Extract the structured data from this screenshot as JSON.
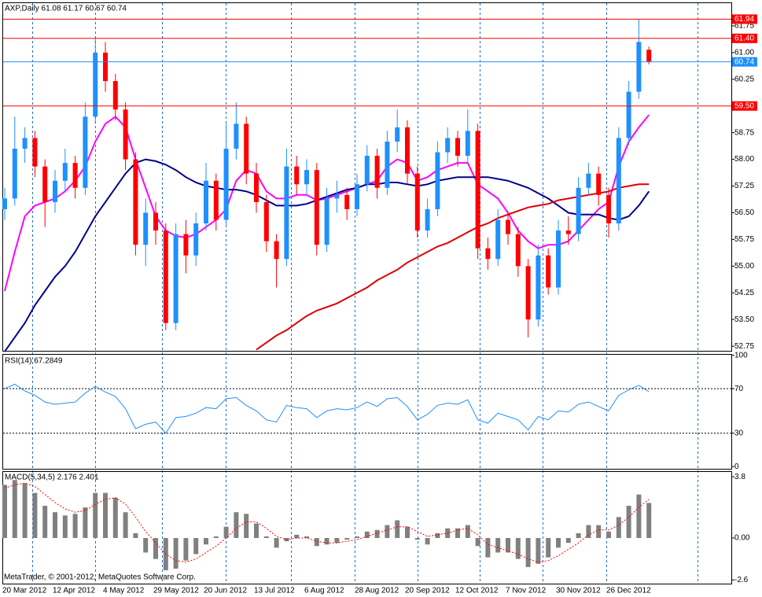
{
  "chart_data": [
    {
      "type": "candlestick",
      "title": "AXP,Daily  61.08 61.17 60.67 60.74",
      "categories": [
        "20 Mar 2012",
        null,
        null,
        null,
        null,
        "12 Apr 2012",
        null,
        null,
        null,
        null,
        "4 May 2012",
        null,
        null,
        null,
        null,
        "29 May 2012",
        null,
        null,
        null,
        null,
        "20 Jun 2012",
        null,
        null,
        null,
        null,
        "13 Jul 2012",
        null,
        null,
        null,
        null,
        "6 Aug 2012",
        null,
        null,
        null,
        null,
        "28 Aug 2012",
        null,
        null,
        null,
        null,
        "20 Sep 2012",
        null,
        null,
        null,
        null,
        "12 Oct 2012",
        null,
        null,
        null,
        null,
        "7 Nov 2012",
        null,
        null,
        null,
        null,
        "30 Nov 2012",
        null,
        null,
        null,
        null,
        "26 Dec 2012",
        null,
        null,
        null,
        null
      ],
      "open": [
        56.6,
        56.9,
        58.3,
        58.6,
        57.8,
        56.8,
        57.4,
        57.9,
        57.2,
        59.2,
        61.0,
        60.2,
        59.4,
        58.0,
        55.6,
        56.5,
        56.0,
        53.4,
        55.9,
        55.3,
        56.2,
        57.4,
        56.3,
        58.3,
        59.0,
        57.6,
        56.8,
        55.7,
        55.2,
        57.8,
        57.3,
        57.7,
        55.6,
        56.9,
        57.0,
        56.6,
        57.3,
        58.1,
        57.2,
        58.5,
        58.9,
        57.6,
        56.0,
        56.6,
        58.2,
        58.6,
        58.1,
        58.8,
        55.5,
        55.2,
        56.3,
        55.9,
        55.0,
        53.5,
        55.3,
        54.4,
        56.0,
        55.9,
        57.2,
        57.6,
        57.0,
        56.2,
        58.6,
        59.9,
        61.08
      ],
      "high": [
        57.2,
        59.2,
        58.9,
        58.8,
        58.0,
        57.7,
        58.3,
        58.1,
        59.6,
        61.4,
        61.3,
        60.4,
        59.6,
        58.2,
        56.9,
        56.8,
        56.2,
        56.2,
        56.3,
        56.5,
        57.9,
        57.6,
        59.0,
        59.6,
        59.2,
        57.9,
        57.0,
        55.9,
        58.3,
        58.1,
        58.0,
        57.9,
        57.2,
        57.4,
        57.2,
        57.6,
        58.4,
        58.3,
        58.8,
        59.4,
        59.1,
        57.8,
        56.9,
        58.5,
        58.9,
        58.8,
        59.4,
        59.0,
        55.8,
        56.6,
        56.5,
        56.1,
        55.2,
        55.6,
        55.5,
        56.3,
        56.4,
        57.5,
        57.9,
        57.8,
        57.2,
        58.9,
        60.2,
        61.94,
        61.17
      ],
      "low": [
        56.3,
        56.7,
        57.9,
        57.5,
        56.1,
        56.5,
        57.1,
        56.9,
        57.0,
        59.0,
        59.9,
        59.1,
        57.7,
        55.3,
        55.0,
        55.6,
        53.2,
        53.2,
        54.8,
        55.0,
        56.0,
        56.0,
        56.1,
        58.0,
        57.3,
        56.5,
        55.4,
        54.4,
        55.0,
        57.0,
        57.0,
        55.3,
        55.4,
        56.5,
        56.3,
        56.4,
        57.1,
        56.9,
        57.0,
        58.2,
        57.3,
        55.8,
        55.8,
        56.4,
        57.9,
        57.8,
        57.9,
        55.2,
        54.9,
        55.0,
        55.6,
        54.7,
        53.0,
        53.3,
        54.2,
        54.2,
        55.6,
        55.7,
        57.0,
        56.7,
        55.8,
        56.0,
        58.4,
        59.7,
        60.67
      ],
      "close": [
        56.9,
        58.3,
        58.6,
        57.8,
        56.8,
        57.4,
        57.9,
        57.2,
        59.2,
        61.0,
        60.2,
        59.4,
        58.0,
        55.6,
        56.5,
        56.0,
        53.4,
        55.9,
        55.3,
        56.2,
        57.4,
        56.3,
        58.3,
        59.0,
        57.6,
        56.8,
        55.7,
        55.2,
        57.8,
        57.3,
        57.7,
        55.6,
        56.9,
        57.0,
        56.6,
        57.3,
        58.1,
        57.2,
        58.5,
        58.9,
        57.6,
        56.0,
        56.6,
        58.2,
        58.6,
        58.1,
        58.8,
        55.5,
        55.2,
        56.3,
        55.9,
        55.0,
        53.5,
        55.3,
        54.4,
        56.0,
        55.9,
        57.2,
        57.6,
        57.0,
        56.2,
        58.6,
        59.9,
        61.3,
        60.74
      ],
      "up_color": "#1e90ff",
      "down_color": "#ff0000",
      "overlays": [
        {
          "color": "#ff00ff",
          "values": [
            54.3,
            55.4,
            56.4,
            56.7,
            56.8,
            56.9,
            57.1,
            57.4,
            57.8,
            58.5,
            59.0,
            59.2,
            58.9,
            58.0,
            57.2,
            56.4,
            56.0,
            55.85,
            55.8,
            55.9,
            56.1,
            56.3,
            56.6,
            57.4,
            57.7,
            57.6,
            57.1,
            56.9,
            56.9,
            57.0,
            57.0,
            56.85,
            56.9,
            57.0,
            57.1,
            57.2,
            57.3,
            57.4,
            57.8,
            58.0,
            57.9,
            57.4,
            57.5,
            57.7,
            57.8,
            57.9,
            57.9,
            57.3,
            57.1,
            56.9,
            56.5,
            56.0,
            55.7,
            55.5,
            55.6,
            55.6,
            55.7,
            56.0,
            56.3,
            56.6,
            56.8,
            57.8,
            58.5,
            58.9,
            59.25
          ]
        },
        {
          "color": "#00008b",
          "values": [
            52.6,
            53.0,
            53.4,
            53.9,
            54.3,
            54.7,
            55.0,
            55.4,
            55.9,
            56.4,
            56.8,
            57.2,
            57.6,
            57.9,
            58.0,
            57.95,
            57.85,
            57.7,
            57.5,
            57.35,
            57.25,
            57.2,
            57.15,
            57.15,
            57.1,
            57.0,
            56.85,
            56.7,
            56.7,
            56.7,
            56.75,
            56.85,
            56.95,
            57.05,
            57.15,
            57.2,
            57.3,
            57.3,
            57.35,
            57.35,
            57.3,
            57.25,
            57.3,
            57.4,
            57.45,
            57.5,
            57.5,
            57.5,
            57.5,
            57.45,
            57.4,
            57.3,
            57.2,
            57.05,
            56.9,
            56.7,
            56.5,
            56.45,
            56.45,
            56.45,
            56.35,
            56.3,
            56.4,
            56.7,
            57.1
          ]
        },
        {
          "color": "#dd0000",
          "values": [
            null,
            null,
            null,
            null,
            null,
            null,
            null,
            null,
            null,
            null,
            null,
            null,
            null,
            null,
            null,
            null,
            null,
            null,
            null,
            null,
            null,
            null,
            null,
            null,
            null,
            52.65,
            52.85,
            53.05,
            53.2,
            53.4,
            53.6,
            53.75,
            53.85,
            53.95,
            54.1,
            54.25,
            54.4,
            54.6,
            54.75,
            54.9,
            55.1,
            55.25,
            55.4,
            55.55,
            55.65,
            55.8,
            55.95,
            56.1,
            56.2,
            56.35,
            56.45,
            56.55,
            56.65,
            56.7,
            56.75,
            56.85,
            56.9,
            56.95,
            57.0,
            57.05,
            57.1,
            57.2,
            57.25,
            57.3,
            57.3
          ]
        }
      ],
      "hlines": [
        {
          "value": 61.94,
          "label": "61.94",
          "color": "#ff0000"
        },
        {
          "value": 61.4,
          "label": "61.40",
          "color": "#ff0000"
        },
        {
          "value": 60.74,
          "label": "60.74",
          "color": "#1e90ff"
        },
        {
          "value": 59.5,
          "label": "59.50",
          "color": "#ff0000"
        }
      ],
      "ylim": [
        52.62,
        62.39
      ],
      "yticks": [
        61.75,
        {
          "value": 61,
          "label": "61.00"
        },
        60.25,
        {
          "value": 59.5,
          "label": "59.50"
        },
        58.75,
        {
          "value": 58,
          "label": "58.00"
        },
        57.25,
        {
          "value": 56.5,
          "label": "56.50"
        },
        55.75,
        {
          "value": 55,
          "label": "55.00"
        },
        54.25,
        {
          "value": 53.5,
          "label": "53.50"
        },
        52.75
      ]
    },
    {
      "type": "line",
      "title": "RSI(14) 67.2849",
      "color": "#1e90ff",
      "values": [
        70,
        74,
        68,
        64,
        58,
        56,
        57,
        58,
        66,
        72,
        67,
        63,
        52,
        34,
        38,
        40,
        30,
        44,
        45,
        48,
        53,
        52,
        61,
        62,
        55,
        50,
        42,
        40,
        55,
        53,
        52,
        44,
        50,
        52,
        51,
        53,
        58,
        54,
        61,
        62,
        54,
        42,
        47,
        55,
        57,
        56,
        60,
        42,
        39,
        48,
        45,
        42,
        33,
        45,
        42,
        50,
        49,
        56,
        58,
        54,
        50,
        64,
        69,
        73,
        67.2849
      ],
      "levels": [
        70,
        30
      ],
      "ylim": [
        -2,
        100.5
      ],
      "yticks": [
        100,
        70,
        30,
        0
      ]
    },
    {
      "type": "bar",
      "title": "MACD(5,34,5) 2.176 2.401",
      "annotation": "MetaTrader, © 2001-2012, MetaQuotes Software Corp.",
      "color": "#808080",
      "values": [
        3.3,
        3.6,
        3.4,
        2.8,
        2.0,
        1.6,
        1.4,
        1.5,
        1.9,
        2.8,
        2.8,
        2.5,
        1.6,
        0.3,
        -0.9,
        -1.3,
        -2.0,
        -1.9,
        -1.4,
        -1.0,
        -0.4,
        0.1,
        0.7,
        1.6,
        1.5,
        0.9,
        0.1,
        -0.6,
        -0.2,
        0.2,
        0.1,
        -0.5,
        -0.4,
        -0.3,
        -0.1,
        0.1,
        0.4,
        0.5,
        0.8,
        1.1,
        0.7,
        -0.1,
        -0.4,
        0.3,
        0.6,
        0.6,
        0.8,
        -0.5,
        -1.2,
        -0.9,
        -0.9,
        -1.3,
        -1.8,
        -1.6,
        -1.2,
        -0.6,
        -0.3,
        0.3,
        0.8,
        0.8,
        0.4,
        1.3,
        2.0,
        2.7,
        2.176
      ],
      "signal": {
        "color": "#ff0000",
        "values": [
          3.1,
          3.3,
          3.4,
          3.2,
          2.7,
          2.2,
          1.8,
          1.6,
          1.7,
          2.1,
          2.4,
          2.5,
          2.1,
          1.3,
          0.4,
          -0.3,
          -1.0,
          -1.4,
          -1.5,
          -1.3,
          -0.9,
          -0.5,
          0.0,
          0.6,
          1.0,
          1.0,
          0.6,
          0.1,
          -0.1,
          0.0,
          0.0,
          -0.2,
          -0.3,
          -0.3,
          -0.2,
          -0.1,
          0.1,
          0.3,
          0.5,
          0.7,
          0.7,
          0.4,
          0.1,
          0.2,
          0.3,
          0.5,
          0.6,
          0.2,
          -0.4,
          -0.6,
          -0.8,
          -1.0,
          -1.3,
          -1.5,
          -1.4,
          -1.1,
          -0.7,
          -0.3,
          0.2,
          0.5,
          0.5,
          0.8,
          1.3,
          1.9,
          2.401
        ]
      },
      "ylim": [
        -2.83,
        4.1
      ],
      "yticks": [
        3.8,
        {
          "value": 0,
          "label": "0.00"
        },
        -2.6
      ]
    }
  ]
}
